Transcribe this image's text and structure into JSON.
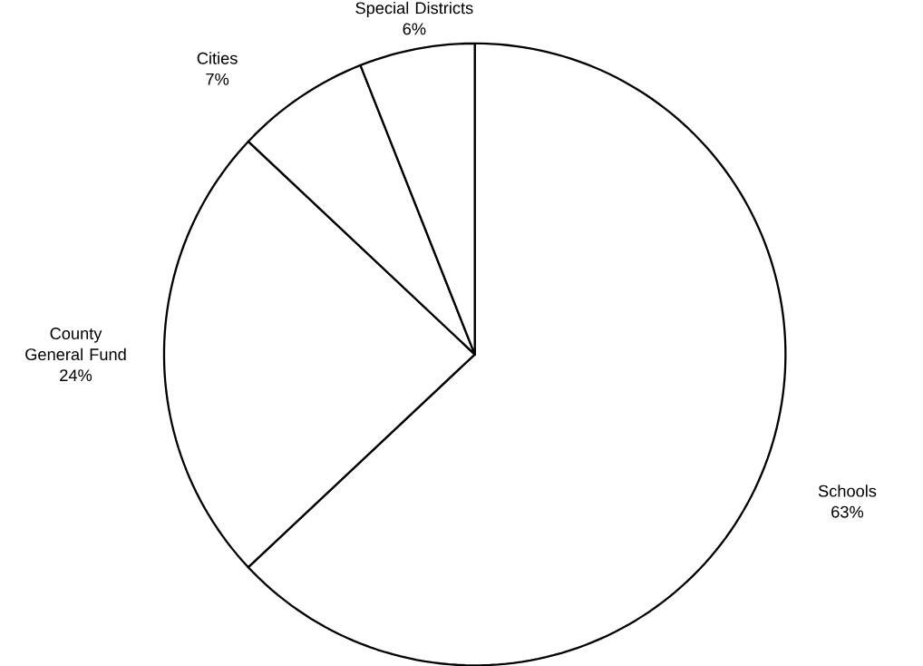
{
  "chart_data": {
    "type": "pie",
    "categories": [
      "Schools",
      "County General Fund",
      "Cities",
      "Special Districts"
    ],
    "values": [
      63,
      24,
      7,
      6
    ],
    "value_labels": [
      "63%",
      "24%",
      "7%",
      "6%"
    ],
    "colors": [
      "#ffffff",
      "#ffffff",
      "#ffffff",
      "#ffffff"
    ]
  }
}
